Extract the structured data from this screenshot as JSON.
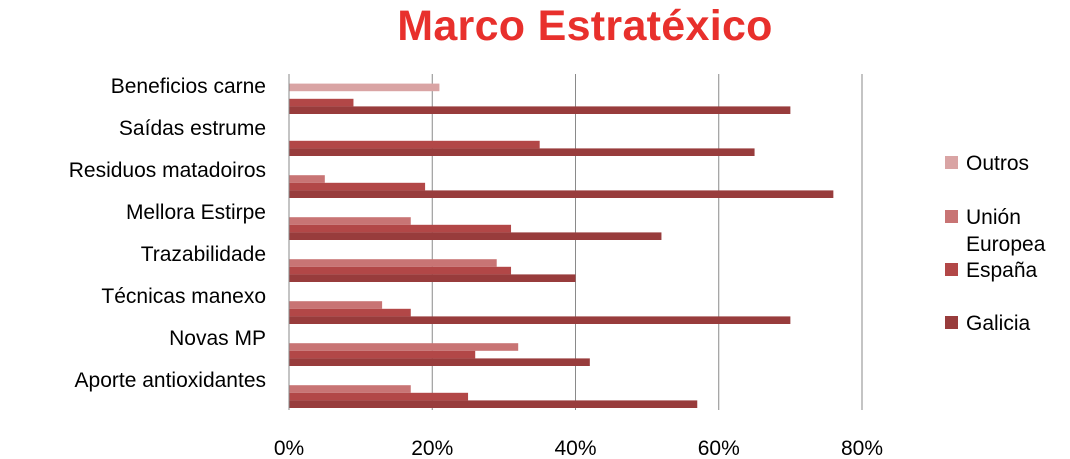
{
  "chart_data": {
    "type": "bar",
    "orientation": "horizontal",
    "title": "Marco Estratéxico",
    "title_color": "#e8302c",
    "categories": [
      "Beneficios carne",
      "Saídas estrume",
      "Residuos matadoiros",
      "Mellora Estirpe",
      "Trazabilidade",
      "Técnicas manexo",
      "Novas MP",
      "Aporte antioxidantes"
    ],
    "series": [
      {
        "name": "Outros",
        "color": "#d9a4a4",
        "values": [
          21,
          0,
          0,
          0,
          0,
          0,
          0,
          0
        ]
      },
      {
        "name": "Unión Europea",
        "color": "#c87474",
        "values": [
          0,
          0,
          5,
          17,
          29,
          13,
          32,
          17
        ]
      },
      {
        "name": "España",
        "color": "#b24747",
        "values": [
          9,
          35,
          19,
          31,
          31,
          17,
          26,
          25
        ]
      },
      {
        "name": "Galicia",
        "color": "#983c3c",
        "values": [
          70,
          65,
          76,
          52,
          40,
          70,
          42,
          57
        ]
      }
    ],
    "xlim": [
      0,
      80
    ],
    "xticks": [
      "0%",
      "20%",
      "40%",
      "60%",
      "80%"
    ],
    "grid": true,
    "legend": "right"
  }
}
